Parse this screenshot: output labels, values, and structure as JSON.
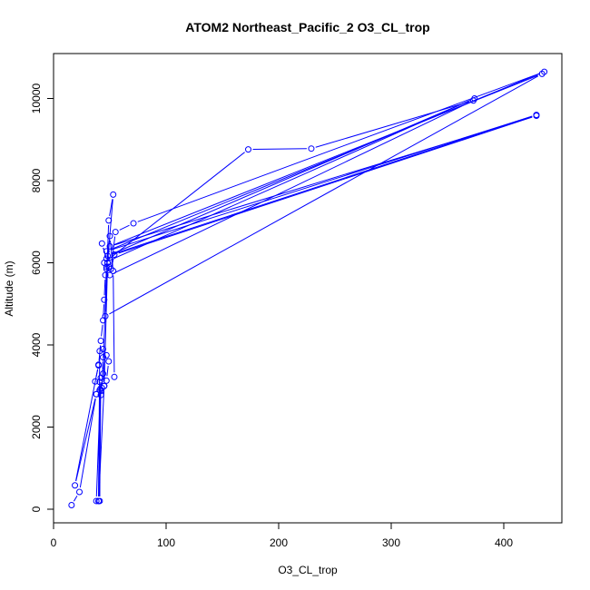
{
  "chart_data": {
    "type": "line",
    "title": "ATOM2 Northeast_Pacific_2 O3_CL_trop",
    "xlabel": "O3_CL_trop",
    "ylabel": "Altitude (m)",
    "xlim": [
      0,
      450
    ],
    "ylim": [
      0,
      11000
    ],
    "xticks": [
      0,
      100,
      200,
      300,
      400
    ],
    "yticks": [
      0,
      2000,
      4000,
      6000,
      8000,
      10000
    ],
    "grid": false,
    "series_color": "#0000ff",
    "series": [
      {
        "points": [
          [
            16,
            100
          ],
          [
            23,
            420
          ],
          [
            38,
            2800
          ],
          [
            41,
            3100
          ],
          [
            37,
            3110
          ],
          [
            40,
            3500
          ],
          [
            42,
            4100
          ],
          [
            44,
            4600
          ],
          [
            45,
            5100
          ],
          [
            46,
            5700
          ],
          [
            47,
            5850
          ],
          [
            48,
            6000
          ],
          [
            43,
            6470
          ],
          [
            47,
            6100
          ],
          [
            49,
            5900
          ],
          [
            51,
            5850
          ],
          [
            55,
            6750
          ],
          [
            71,
            6960
          ],
          [
            436,
            10650
          ],
          [
            47,
            6280
          ],
          [
            429,
            9600
          ],
          [
            48,
            6170
          ],
          [
            374,
            10000
          ],
          [
            45,
            6000
          ],
          [
            173,
            8760
          ],
          [
            229,
            8780
          ],
          [
            373,
            9950
          ],
          [
            50,
            5700
          ],
          [
            54,
            6200
          ],
          [
            429,
            9580
          ],
          [
            50,
            6400
          ],
          [
            434,
            10600
          ],
          [
            46,
            4700
          ],
          [
            49,
            7030
          ],
          [
            53,
            7660
          ],
          [
            48,
            6000
          ],
          [
            45,
            3000
          ],
          [
            44,
            3900
          ],
          [
            47,
            3750
          ],
          [
            49,
            3600
          ],
          [
            47,
            3130
          ],
          [
            54,
            3220
          ],
          [
            53,
            5800
          ],
          [
            50,
            6650
          ],
          [
            47,
            5900
          ],
          [
            44,
            3300
          ],
          [
            42,
            2880
          ],
          [
            43,
            2950
          ],
          [
            44,
            3700
          ],
          [
            40,
            3520
          ],
          [
            19,
            580
          ],
          [
            38,
            2800
          ],
          [
            42,
            2780
          ],
          [
            45,
            3000
          ],
          [
            40,
            200
          ],
          [
            38,
            200
          ],
          [
            42,
            3200
          ],
          [
            41,
            200
          ],
          [
            41,
            2900
          ],
          [
            40,
            200
          ],
          [
            41,
            3850
          ]
        ]
      }
    ]
  }
}
